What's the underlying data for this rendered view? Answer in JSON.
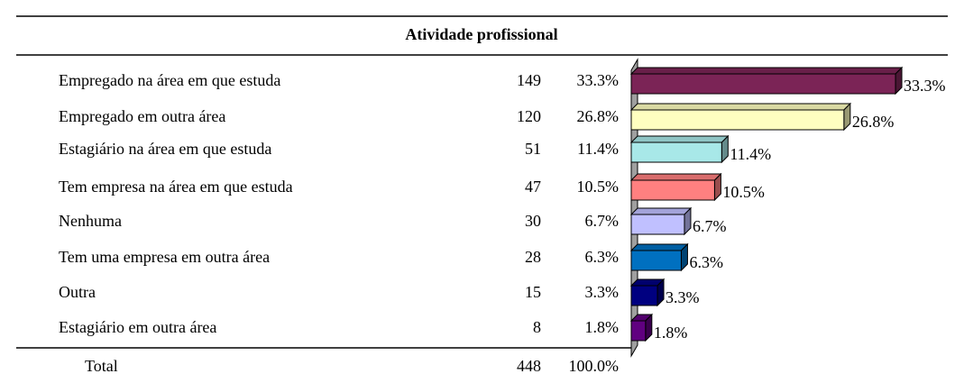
{
  "chart_data": {
    "type": "bar",
    "title": "Atividade profissional",
    "categories": [
      "Empregado na área em que estuda",
      "Empregado em outra área",
      "Estagiário na área em que estuda",
      "Tem empresa na área em que estuda",
      "Nenhuma",
      "Tem uma empresa em outra área",
      "Outra",
      "Estagiário em outra área"
    ],
    "counts": [
      149,
      120,
      51,
      47,
      30,
      28,
      15,
      8
    ],
    "values": [
      33.3,
      26.8,
      11.4,
      10.5,
      6.7,
      6.3,
      3.3,
      1.8
    ],
    "value_labels": [
      "33.3%",
      "26.8%",
      "11.4%",
      "10.5%",
      "6.7%",
      "6.3%",
      "3.3%",
      "1.8%"
    ],
    "colors": [
      "#7b2456",
      "#ffffc0",
      "#a8e8e8",
      "#ff8080",
      "#c0c0ff",
      "#0070c0",
      "#000080",
      "#600080"
    ],
    "total": {
      "label": "Total",
      "count": 448,
      "percent": "100.0%"
    }
  }
}
